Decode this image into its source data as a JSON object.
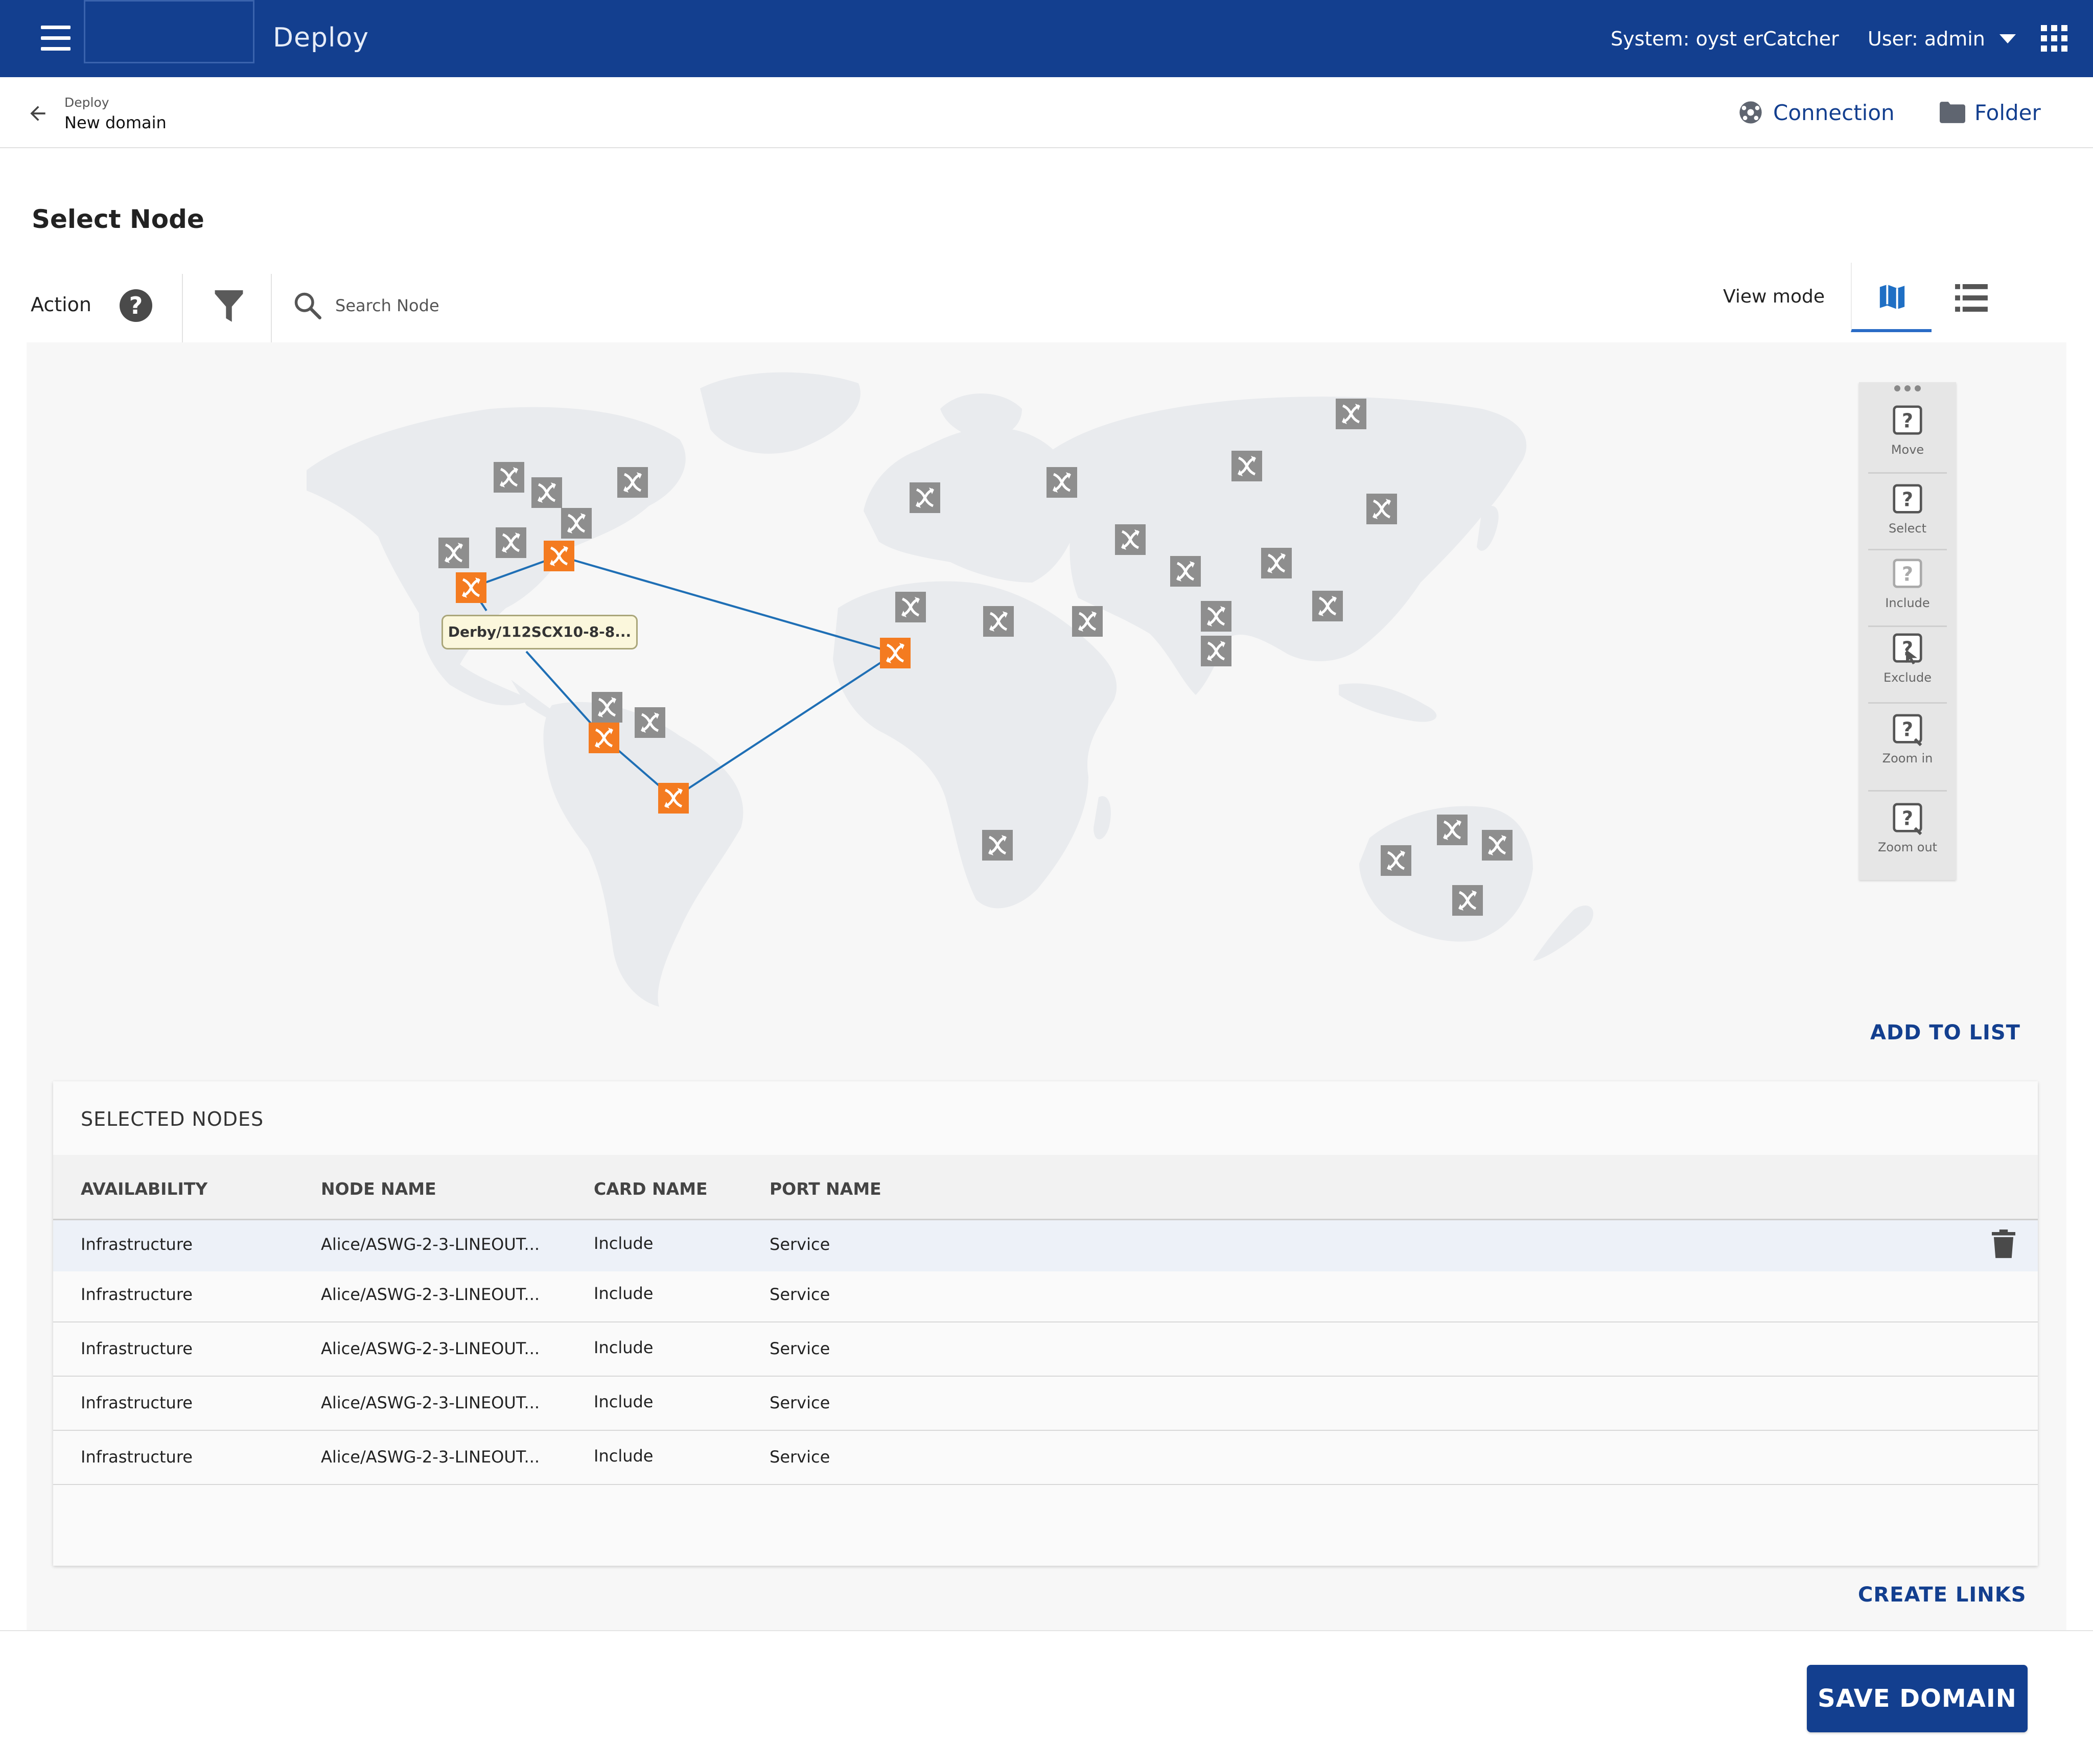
{
  "topbar": {
    "app_title": "Deploy",
    "system_label": "System: oyst erCatcher",
    "user_label": "User: admin",
    "icons": [
      "hamburger-menu-icon",
      "caret-down-icon",
      "apps-grid-icon"
    ],
    "brand_color": "#133f8f"
  },
  "breadcrumb": {
    "parent": "Deploy",
    "current": "New domain"
  },
  "header_actions": {
    "connection_label": "Connection",
    "folder_label": "Folder"
  },
  "select_node": {
    "title": "Select Node",
    "action_label": "Action",
    "help_glyph": "?",
    "search_placeholder": "Search Node",
    "view_mode_label": "View mode",
    "active_view": "map"
  },
  "map": {
    "tooltip": "Derby/112SCX10-8-8...",
    "selected_node_color": "#f47b20",
    "node_color": "#8e8e8e",
    "link_color": "#1f6fb5",
    "tools": [
      {
        "label": "Move"
      },
      {
        "label": "Select"
      },
      {
        "label": "Include"
      },
      {
        "label": "Exclude"
      },
      {
        "label": "Zoom in"
      },
      {
        "label": "Zoom out"
      }
    ],
    "add_to_list_label": "ADD TO LIST"
  },
  "selected_nodes": {
    "title": "SELECTED NODES",
    "columns": [
      "AVAILABILITY",
      "NODE NAME",
      "CARD NAME",
      "PORT NAME"
    ],
    "rows": [
      {
        "availability": "Infrastructure",
        "node_name": "Alice/ASWG-2-3-LINEOUT...",
        "card_name": "Include",
        "port_name": "Service"
      },
      {
        "availability": "Infrastructure",
        "node_name": "Alice/ASWG-2-3-LINEOUT...",
        "card_name": "Include",
        "port_name": "Service"
      },
      {
        "availability": "Infrastructure",
        "node_name": "Alice/ASWG-2-3-LINEOUT...",
        "card_name": "Include",
        "port_name": "Service"
      },
      {
        "availability": "Infrastructure",
        "node_name": "Alice/ASWG-2-3-LINEOUT...",
        "card_name": "Include",
        "port_name": "Service"
      },
      {
        "availability": "Infrastructure",
        "node_name": "Alice/ASWG-2-3-LINEOUT...",
        "card_name": "Include",
        "port_name": "Service"
      }
    ],
    "create_links_label": "CREATE LINKS"
  },
  "footer": {
    "save_label": "SAVE DOMAIN"
  }
}
